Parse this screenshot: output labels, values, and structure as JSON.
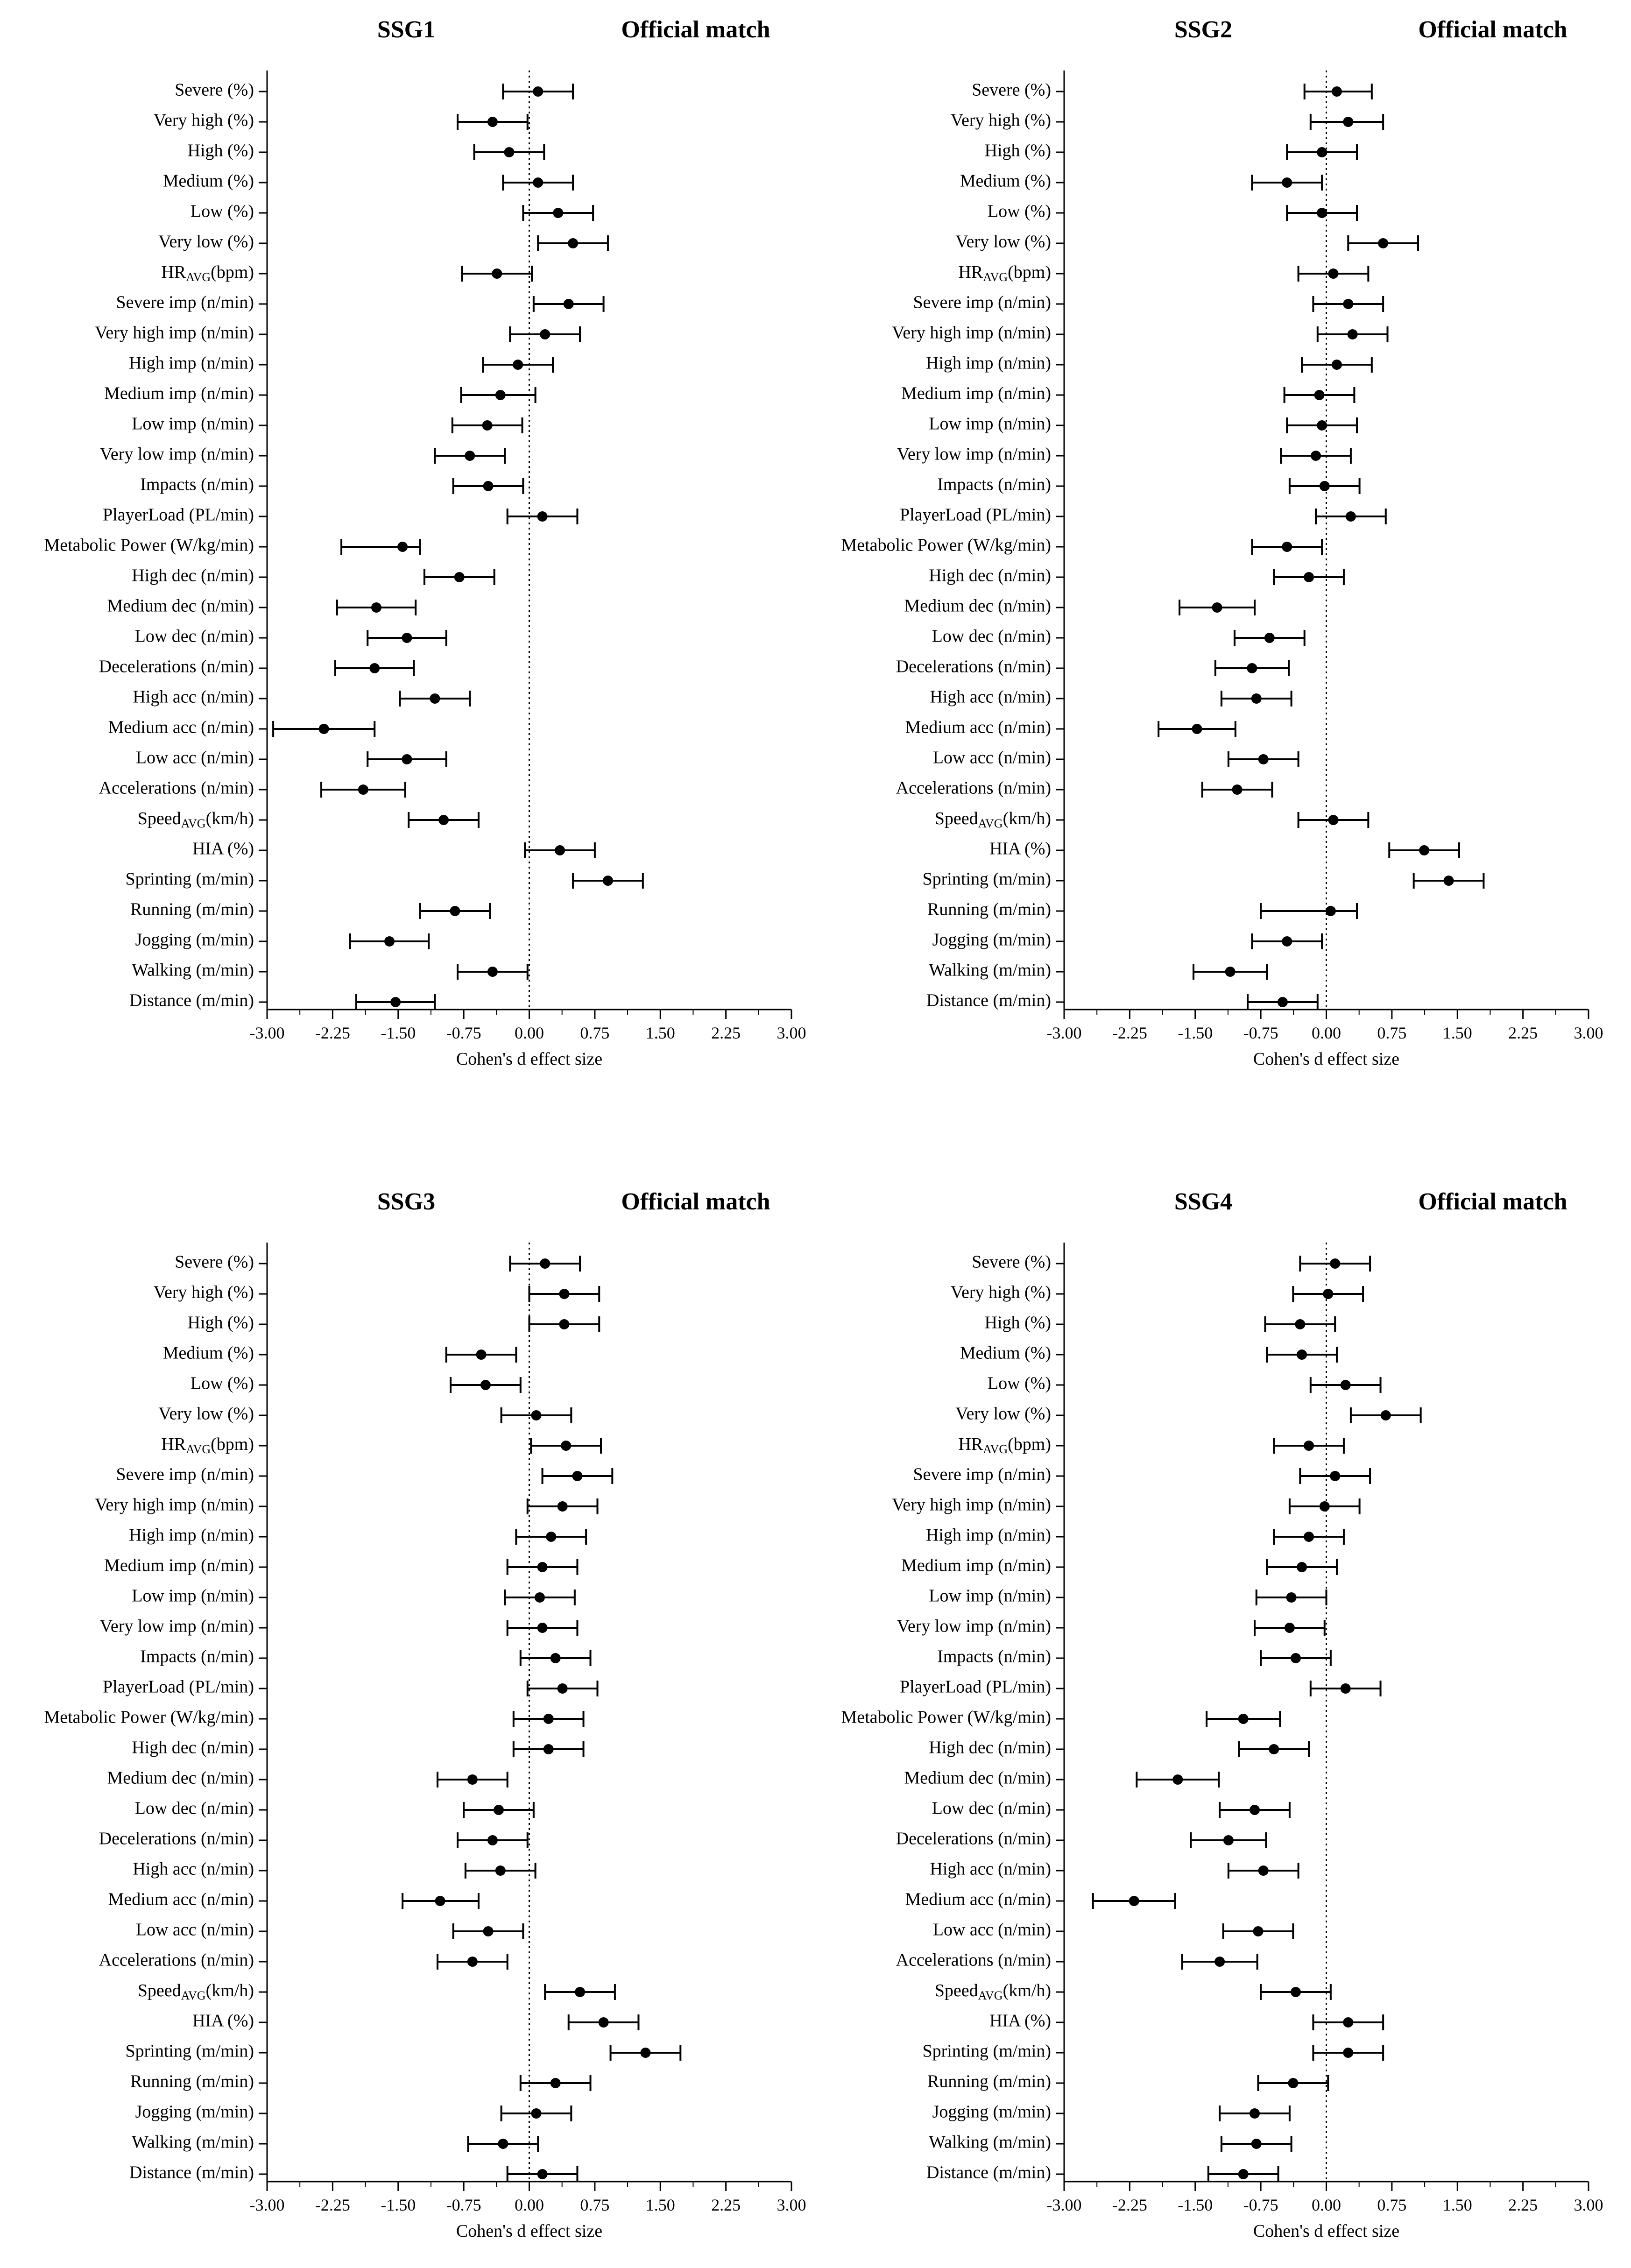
{
  "shared": {
    "categories": [
      "Severe (%)",
      "Very high (%)",
      "High (%)",
      "Medium (%)",
      "Low (%)",
      "Very low (%)",
      "HR_AVG (bpm)",
      "Severe imp (n/min)",
      "Very high imp (n/min)",
      "High imp (n/min)",
      "Medium imp (n/min)",
      "Low imp (n/min)",
      "Very low imp (n/min)",
      "Impacts (n/min)",
      "PlayerLoad (PL/min)",
      "Metabolic Power (W/kg/min)",
      "High dec (n/min)",
      "Medium dec (n/min)",
      "Low dec (n/min)",
      "Decelerations (n/min)",
      "High acc (n/min)",
      "Medium acc (n/min)",
      "Low acc (n/min)",
      "Accelerations (n/min)",
      "Speed_AVG (km/h)",
      "HIA (%)",
      "Sprinting (m/min)",
      "Running (m/min)",
      "Jogging (m/min)",
      "Walking (m/min)",
      "Distance (m/min)"
    ],
    "xlabel": "Cohen's d effect size",
    "xticks": [
      "-3.00",
      "-2.25",
      "-1.50",
      "-0.75",
      "0.00",
      "0.75",
      "1.50",
      "2.25",
      "3.00"
    ],
    "xlim": [
      -3.0,
      3.0
    ],
    "right_title": "Official match"
  },
  "chart_data": [
    {
      "type": "forest",
      "title": "SSG1",
      "right_title": "Official match",
      "xlabel": "Cohen's d effect size",
      "xlim": [
        -3.0,
        3.0
      ],
      "d": [
        0.1,
        -0.42,
        -0.23,
        0.1,
        0.33,
        0.5,
        -0.37,
        0.45,
        0.18,
        -0.13,
        -0.33,
        -0.48,
        -0.68,
        -0.47,
        0.15,
        -1.45,
        -0.8,
        -1.75,
        -1.4,
        -1.77,
        -1.08,
        -2.35,
        -1.4,
        -1.9,
        -0.98,
        0.35,
        0.9,
        -0.85,
        -1.6,
        -0.42,
        -1.53
      ],
      "lower": [
        -0.3,
        -0.82,
        -0.63,
        -0.3,
        -0.07,
        0.1,
        -0.77,
        0.05,
        -0.22,
        -0.53,
        -0.78,
        -0.88,
        -1.08,
        -0.87,
        -0.25,
        -2.15,
        -1.2,
        -2.2,
        -1.85,
        -2.22,
        -1.48,
        -2.93,
        -1.85,
        -2.38,
        -1.38,
        -0.05,
        0.5,
        -1.25,
        -2.05,
        -0.82,
        -1.98
      ],
      "upper": [
        0.5,
        -0.02,
        0.17,
        0.5,
        0.73,
        0.9,
        0.03,
        0.85,
        0.58,
        0.27,
        0.07,
        -0.08,
        -0.28,
        -0.07,
        0.55,
        -1.25,
        -0.4,
        -1.3,
        -0.95,
        -1.32,
        -0.68,
        -1.77,
        -0.95,
        -1.42,
        -0.58,
        0.75,
        1.3,
        -0.45,
        -1.15,
        -0.02,
        -1.08
      ]
    },
    {
      "type": "forest",
      "title": "SSG2",
      "right_title": "Official match",
      "xlabel": "Cohen's d effect size",
      "xlim": [
        -3.0,
        3.0
      ],
      "d": [
        0.12,
        0.25,
        -0.05,
        -0.45,
        -0.05,
        0.65,
        0.08,
        0.25,
        0.3,
        0.12,
        -0.08,
        -0.05,
        -0.12,
        -0.02,
        0.28,
        -0.45,
        -0.2,
        -1.25,
        -0.65,
        -0.85,
        -0.8,
        -1.48,
        -0.72,
        -1.02,
        0.08,
        1.12,
        1.4,
        0.05,
        -0.45,
        -1.1,
        -0.5
      ],
      "lower": [
        -0.25,
        -0.18,
        -0.45,
        -0.85,
        -0.45,
        0.25,
        -0.32,
        -0.15,
        -0.1,
        -0.28,
        -0.48,
        -0.45,
        -0.52,
        -0.42,
        -0.12,
        -0.85,
        -0.6,
        -1.68,
        -1.05,
        -1.27,
        -1.2,
        -1.92,
        -1.12,
        -1.42,
        -0.32,
        0.72,
        1.0,
        -0.75,
        -0.85,
        -1.52,
        -0.9
      ],
      "upper": [
        0.52,
        0.65,
        0.35,
        -0.05,
        0.35,
        1.05,
        0.48,
        0.65,
        0.7,
        0.52,
        0.32,
        0.35,
        0.28,
        0.38,
        0.68,
        -0.05,
        0.2,
        -0.82,
        -0.25,
        -0.43,
        -0.4,
        -1.04,
        -0.32,
        -0.62,
        0.48,
        1.52,
        1.8,
        0.35,
        -0.05,
        -0.68,
        -0.1
      ]
    },
    {
      "type": "forest",
      "title": "SSG3",
      "right_title": "Official match",
      "xlabel": "Cohen's d effect size",
      "xlim": [
        -3.0,
        3.0
      ],
      "d": [
        0.18,
        0.4,
        0.4,
        -0.55,
        -0.5,
        0.08,
        0.42,
        0.55,
        0.38,
        0.25,
        0.15,
        0.12,
        0.15,
        0.3,
        0.38,
        0.22,
        0.22,
        -0.65,
        -0.35,
        -0.42,
        -0.33,
        -1.02,
        -0.47,
        -0.65,
        0.58,
        0.85,
        1.33,
        0.3,
        0.08,
        -0.3,
        0.15
      ],
      "lower": [
        -0.22,
        0.0,
        0.0,
        -0.95,
        -0.9,
        -0.32,
        0.02,
        0.15,
        -0.02,
        -0.15,
        -0.25,
        -0.28,
        -0.25,
        -0.1,
        -0.02,
        -0.18,
        -0.18,
        -1.05,
        -0.75,
        -0.82,
        -0.73,
        -1.45,
        -0.87,
        -1.05,
        0.18,
        0.45,
        0.93,
        -0.1,
        -0.32,
        -0.7,
        -0.25
      ],
      "upper": [
        0.58,
        0.8,
        0.8,
        -0.15,
        -0.1,
        0.48,
        0.82,
        0.95,
        0.78,
        0.65,
        0.55,
        0.52,
        0.55,
        0.7,
        0.78,
        0.62,
        0.62,
        -0.25,
        0.05,
        -0.02,
        0.07,
        -0.58,
        -0.07,
        -0.25,
        0.98,
        1.25,
        1.73,
        0.7,
        0.48,
        0.1,
        0.55
      ]
    },
    {
      "type": "forest",
      "title": "SSG4",
      "right_title": "Official match",
      "xlabel": "Cohen's d effect size",
      "xlim": [
        -3.0,
        3.0
      ],
      "d": [
        0.1,
        0.02,
        -0.3,
        -0.28,
        0.22,
        0.68,
        -0.2,
        0.1,
        -0.02,
        -0.2,
        -0.28,
        -0.4,
        -0.42,
        -0.35,
        0.22,
        -0.95,
        -0.6,
        -1.7,
        -0.82,
        -1.12,
        -0.72,
        -2.2,
        -0.78,
        -1.22,
        -0.35,
        0.25,
        0.25,
        -0.38,
        -0.82,
        -0.8,
        -0.95
      ],
      "lower": [
        -0.3,
        -0.38,
        -0.7,
        -0.68,
        -0.18,
        0.28,
        -0.6,
        -0.3,
        -0.42,
        -0.6,
        -0.68,
        -0.8,
        -0.82,
        -0.75,
        -0.18,
        -1.37,
        -1.0,
        -2.17,
        -1.22,
        -1.55,
        -1.12,
        -2.67,
        -1.18,
        -1.65,
        -0.75,
        -0.15,
        -0.15,
        -0.78,
        -1.22,
        -1.2,
        -1.35
      ],
      "upper": [
        0.5,
        0.42,
        0.1,
        0.12,
        0.62,
        1.08,
        0.2,
        0.5,
        0.38,
        0.2,
        0.12,
        0.0,
        -0.02,
        0.05,
        0.62,
        -0.53,
        -0.2,
        -1.23,
        -0.42,
        -0.69,
        -0.32,
        -1.73,
        -0.38,
        -0.79,
        0.05,
        0.65,
        0.65,
        0.02,
        -0.42,
        -0.4,
        -0.55
      ]
    }
  ]
}
